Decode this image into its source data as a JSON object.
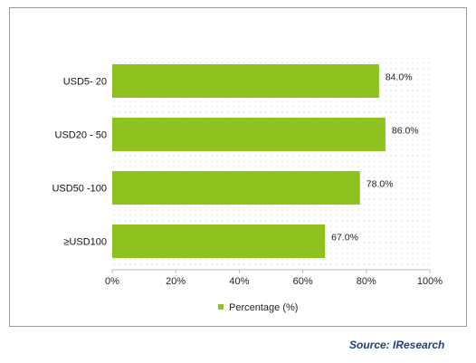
{
  "chart_data": {
    "type": "bar",
    "orientation": "horizontal",
    "categories": [
      "USD5- 20",
      "USD20 - 50",
      "USD50 -100",
      "≥USD100"
    ],
    "series": [
      {
        "name": "Percentage (%)",
        "values": [
          84.0,
          86.0,
          78.0,
          67.0
        ],
        "color": "#8dc21f"
      }
    ],
    "data_labels": [
      "84.0%",
      "86.0%",
      "78.0%",
      "67.0%"
    ],
    "xlim": [
      0,
      100
    ],
    "x_ticks": [
      "0%",
      "20%",
      "40%",
      "60%",
      "80%",
      "100%"
    ],
    "legend": {
      "position": "bottom",
      "label": "Percentage (%)"
    },
    "grid": false
  },
  "source": "Source: IResearch"
}
